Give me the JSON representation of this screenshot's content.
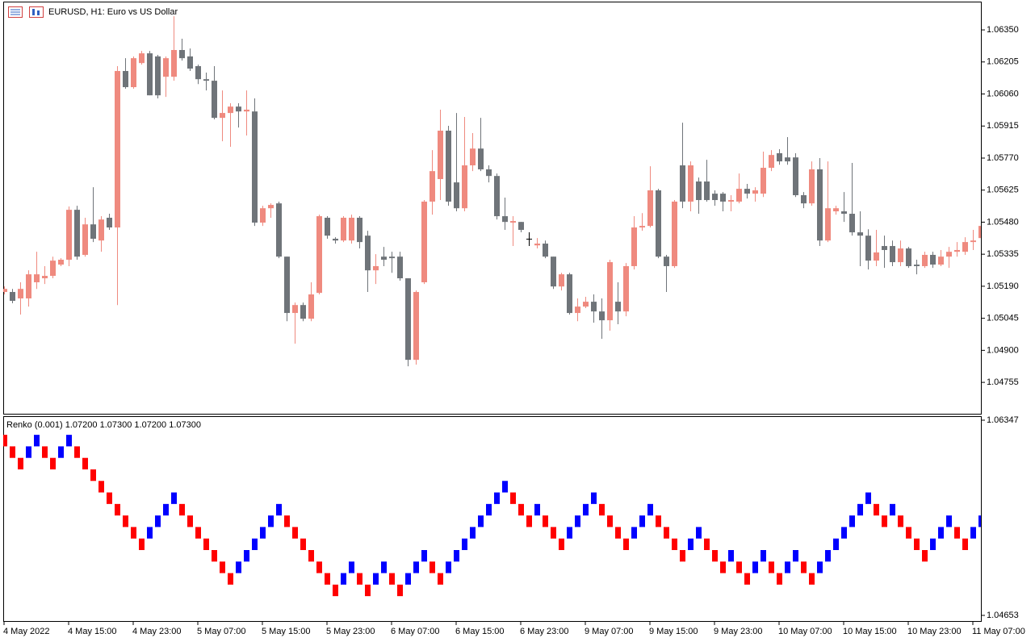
{
  "chart_data": [
    {
      "type": "candlestick",
      "title": "EURUSD, H1: Euro vs US Dollar",
      "categories": [
        "4 May 2022",
        null,
        null,
        null,
        null,
        null,
        null,
        null,
        "4 May 15:00",
        null,
        null,
        null,
        null,
        null,
        null,
        null,
        "4 May 23:00",
        null,
        null,
        null,
        null,
        null,
        null,
        null,
        "5 May 07:00",
        null,
        null,
        null,
        null,
        null,
        null,
        null,
        "5 May 15:00",
        null,
        null,
        null,
        null,
        null,
        null,
        null,
        "5 May 23:00",
        null,
        null,
        null,
        null,
        null,
        null,
        null,
        "6 May 07:00",
        null,
        null,
        null,
        null,
        null,
        null,
        null,
        "6 May 15:00",
        null,
        null,
        null,
        null,
        null,
        null,
        null,
        "6 May 23:00",
        null,
        null,
        null,
        null,
        null,
        null,
        null,
        "9 May 07:00",
        null,
        null,
        null,
        null,
        null,
        null,
        null,
        "9 May 15:00",
        null,
        null,
        null,
        null,
        null,
        null,
        null,
        "9 May 23:00",
        null,
        null,
        null,
        null,
        null,
        null,
        null,
        "10 May 07:00",
        null,
        null,
        null,
        null,
        null,
        null,
        null,
        "10 May 15:00",
        null,
        null,
        null,
        null,
        null,
        null,
        null,
        "10 May 23:00",
        null,
        null,
        null,
        null,
        null,
        null,
        null,
        "11 May 07:00",
        null
      ],
      "open": [
        1.05164,
        1.05164,
        1.05135,
        1.05135,
        1.05208,
        1.05226,
        1.05237,
        1.05288,
        1.0531,
        1.05536,
        1.05332,
        1.0547,
        1.05397,
        1.055,
        1.05456,
        1.06164,
        1.06091,
        1.062,
        1.06244,
        1.0623,
        1.06138,
        1.06138,
        1.06259,
        1.0623,
        1.06186,
        1.06127,
        1.0612,
        1.05952,
        1.05974,
        1.06003,
        1.05981,
        1.05981,
        1.05478,
        1.05543,
        1.05565,
        1.05324,
        1.05069,
        1.05105,
        1.05043,
        1.0516,
        1.055,
        1.05405,
        1.05397,
        1.05397,
        1.055,
        1.05419,
        1.05262,
        1.05324,
        1.05324,
        1.05324,
        1.05226,
        1.04857,
        1.05208,
        1.05573,
        1.05675,
        1.05894,
        1.0566,
        1.05543,
        1.05737,
        1.05813,
        1.05719,
        1.05689,
        1.05507,
        1.05478,
        1.05481,
        1.05405,
        1.05375,
        1.05383,
        1.05324,
        1.05189,
        1.05244,
        1.05069,
        1.05098,
        1.0512,
        1.05076,
        1.05036,
        1.0512,
        1.05076,
        1.05281,
        1.05456,
        1.05463,
        1.05624,
        1.05324,
        1.05281,
        1.05737,
        1.05573,
        1.05664,
        1.05664,
        1.05609,
        1.05609,
        1.05573,
        1.05573,
        1.05631,
        1.05609,
        1.05609,
        1.05726,
        1.05792,
        1.05773,
        1.05773,
        1.05602,
        1.05565,
        1.05719,
        1.05397,
        1.05529,
        1.05529,
        1.05518,
        1.05434,
        1.05419,
        1.05306,
        1.05372,
        1.05372,
        1.05299,
        1.05361,
        1.05288,
        1.05281,
        1.05332,
        1.05288,
        1.05324,
        1.05346,
        1.05346,
        1.0539,
        1.05408
      ],
      "high": [
        1.05189,
        1.05178,
        1.05208,
        1.05262,
        1.05346,
        1.05281,
        1.05324,
        1.05317,
        1.05551,
        1.05554,
        1.055,
        1.05638,
        1.05507,
        1.05518,
        1.06186,
        1.06222,
        1.0623,
        1.06255,
        1.06255,
        1.06237,
        1.0623,
        1.06412,
        1.0631,
        1.06266,
        1.06193,
        1.06157,
        1.06186,
        1.06076,
        1.06018,
        1.06018,
        1.06076,
        1.0604,
        1.05554,
        1.05565,
        1.05573,
        1.05324,
        1.05116,
        1.05116,
        1.05208,
        1.05514,
        1.05507,
        1.05412,
        1.05507,
        1.05514,
        1.05507,
        1.05441,
        1.05335,
        1.05368,
        1.05346,
        1.05346,
        1.05226,
        1.05171,
        1.0558,
        1.05806,
        1.05989,
        1.05916,
        1.05974,
        1.05956,
        1.05883,
        1.05952,
        1.05737,
        1.057,
        1.05591,
        1.05507,
        1.05481,
        1.05434,
        1.05408,
        1.05397,
        1.05324,
        1.05251,
        1.05251,
        1.05135,
        1.05142,
        1.05153,
        1.05135,
        1.0531,
        1.05208,
        1.05295,
        1.05507,
        1.05521,
        1.05733,
        1.05631,
        1.05332,
        1.0558,
        1.0593,
        1.05755,
        1.05682,
        1.05762,
        1.05624,
        1.05616,
        1.05602,
        1.057,
        1.05653,
        1.05638,
        1.05799,
        1.05806,
        1.0581,
        1.05865,
        1.05792,
        1.05616,
        1.05755,
        1.0577,
        1.05755,
        1.05554,
        1.05616,
        1.05748,
        1.05529,
        1.05448,
        1.05445,
        1.05419,
        1.05397,
        1.05397,
        1.05368,
        1.0531,
        1.05346,
        1.05346,
        1.05354,
        1.05368,
        1.0539,
        1.05412,
        1.05445,
        1.05507
      ],
      "low": [
        1.05153,
        1.05113,
        1.05062,
        1.05098,
        1.05178,
        1.052,
        1.05226,
        1.05281,
        1.05281,
        1.0531,
        1.05324,
        1.0539,
        1.05346,
        1.05445,
        1.05105,
        1.06084,
        1.06084,
        1.06193,
        1.06054,
        1.0604,
        1.06047,
        1.0612,
        1.06211,
        1.06164,
        1.06105,
        1.06076,
        1.05945,
        1.05846,
        1.05821,
        1.05908,
        1.05872,
        1.05463,
        1.05463,
        1.055,
        1.05317,
        1.05032,
        1.0493,
        1.05032,
        1.05032,
        1.05153,
        1.05405,
        1.05383,
        1.0539,
        1.05383,
        1.05361,
        1.05164,
        1.052,
        1.05281,
        1.05251,
        1.05215,
        1.04828,
        1.04835,
        1.052,
        1.05514,
        1.0558,
        1.05554,
        1.05529,
        1.05529,
        1.05711,
        1.05711,
        1.0566,
        1.05492,
        1.05445,
        1.05372,
        1.05434,
        1.05372,
        1.05361,
        1.05317,
        1.05178,
        1.05171,
        1.05062,
        1.05032,
        1.05091,
        1.05025,
        1.04952,
        1.04989,
        1.05018,
        1.05054,
        1.05266,
        1.05441,
        1.05456,
        1.05317,
        1.05164,
        1.05273,
        1.05543,
        1.05529,
        1.05518,
        1.05573,
        1.05554,
        1.05529,
        1.05529,
        1.05565,
        1.05587,
        1.05573,
        1.05594,
        1.05711,
        1.0574,
        1.0574,
        1.05594,
        1.05543,
        1.05554,
        1.05372,
        1.0539,
        1.05514,
        1.05481,
        1.05419,
        1.05281,
        1.05266,
        1.05281,
        1.05273,
        1.05281,
        1.05281,
        1.05273,
        1.05244,
        1.05273,
        1.05273,
        1.05281,
        1.05273,
        1.05324,
        1.05332,
        1.05354,
        1.0539
      ],
      "close": [
        1.05178,
        1.05124,
        1.05178,
        1.05244,
        1.05244,
        1.05237,
        1.05306,
        1.0531,
        1.05536,
        1.05324,
        1.0547,
        1.05405,
        1.05492,
        1.05456,
        1.06164,
        1.06091,
        1.06222,
        1.06244,
        1.06054,
        1.06054,
        1.06222,
        1.06259,
        1.06222,
        1.06175,
        1.06127,
        1.0612,
        1.05952,
        1.05974,
        1.06003,
        1.05981,
        1.05989,
        1.05478,
        1.05543,
        1.05558,
        1.05324,
        1.05069,
        1.05105,
        1.05043,
        1.05153,
        1.05507,
        1.05419,
        1.05397,
        1.055,
        1.055,
        1.0539,
        1.05262,
        1.05281,
        1.0531,
        1.05317,
        1.05226,
        1.04857,
        1.05164,
        1.05573,
        1.05711,
        1.05894,
        1.05573,
        1.05543,
        1.05737,
        1.05813,
        1.05719,
        1.05689,
        1.05507,
        1.05481,
        1.05485,
        1.05445,
        1.05405,
        1.05383,
        1.05324,
        1.05189,
        1.05244,
        1.05069,
        1.05098,
        1.0512,
        1.05076,
        1.05036,
        1.05299,
        1.05076,
        1.05281,
        1.05456,
        1.05463,
        1.05624,
        1.05324,
        1.05281,
        1.05573,
        1.05573,
        1.05737,
        1.0558,
        1.0558,
        1.0558,
        1.05573,
        1.0558,
        1.05631,
        1.05609,
        1.05624,
        1.05726,
        1.05784,
        1.05755,
        1.05755,
        1.05602,
        1.05565,
        1.05719,
        1.05397,
        1.05543,
        1.05543,
        1.05518,
        1.05434,
        1.05419,
        1.05306,
        1.05343,
        1.05354,
        1.05299,
        1.05361,
        1.05281,
        1.05281,
        1.05332,
        1.05288,
        1.05324,
        1.05346,
        1.05354,
        1.0539,
        1.05397,
        1.05463
      ],
      "up_color": "#ef8a7f",
      "down_color": "#6f7479",
      "ylim": [
        1.04613,
        1.06478
      ],
      "yticks": [
        {
          "value": 1.0635,
          "label": "1.06350"
        },
        1.06205,
        {
          "value": 1.0606,
          "label": "1.06060"
        },
        1.05915,
        {
          "value": 1.0577,
          "label": "1.05770"
        },
        1.05625,
        {
          "value": 1.0548,
          "label": "1.05480"
        },
        1.05335,
        {
          "value": 1.0519,
          "label": "1.05190"
        },
        1.05045,
        {
          "value": 1.049,
          "label": "1.04900"
        },
        1.04755
      ]
    },
    {
      "type": "renko",
      "title": "Renko (0.001) 1.07200 1.07300 1.07200 1.07300",
      "open": [
        1.0622,
        1.0612,
        1.0602,
        1.0602,
        1.0612,
        1.0612,
        1.0602,
        1.0602,
        1.0612,
        1.0612,
        1.0602,
        1.0592,
        1.0582,
        1.0572,
        1.0562,
        1.0552,
        1.0542,
        1.0532,
        1.0532,
        1.0542,
        1.0552,
        1.0562,
        1.0562,
        1.0552,
        1.0542,
        1.0532,
        1.0522,
        1.0512,
        1.0502,
        1.0502,
        1.0512,
        1.0522,
        1.0532,
        1.0542,
        1.0552,
        1.0552,
        1.0542,
        1.0532,
        1.0522,
        1.0512,
        1.0502,
        1.0492,
        1.0492,
        1.0502,
        1.0502,
        1.0492,
        1.0492,
        1.0502,
        1.0502,
        1.0492,
        1.0492,
        1.0502,
        1.0512,
        1.0512,
        1.0502,
        1.0502,
        1.0512,
        1.0522,
        1.0532,
        1.0542,
        1.0552,
        1.0562,
        1.0572,
        1.0572,
        1.0562,
        1.0552,
        1.0552,
        1.0552,
        1.0542,
        1.0532,
        1.0532,
        1.0542,
        1.0552,
        1.0562,
        1.0562,
        1.0552,
        1.0542,
        1.0532,
        1.0532,
        1.0542,
        1.0552,
        1.0552,
        1.0542,
        1.0532,
        1.0522,
        1.0522,
        1.0532,
        1.0532,
        1.0522,
        1.0512,
        1.0512,
        1.0512,
        1.0502,
        1.0502,
        1.0512,
        1.0512,
        1.0502,
        1.0502,
        1.0512,
        1.0512,
        1.0502,
        1.0502,
        1.0512,
        1.0522,
        1.0532,
        1.0542,
        1.0552,
        1.0562,
        1.0562,
        1.0552,
        1.0552,
        1.0552,
        1.0542,
        1.0532,
        1.0522,
        1.0522,
        1.0532,
        1.0542,
        1.0542,
        1.0532,
        1.0532,
        1.0542
      ],
      "close": [
        1.0612,
        1.0602,
        1.0592,
        1.0612,
        1.0622,
        1.0602,
        1.0592,
        1.0612,
        1.0622,
        1.0602,
        1.0592,
        1.0582,
        1.0572,
        1.0562,
        1.0552,
        1.0542,
        1.0532,
        1.0522,
        1.0542,
        1.0552,
        1.0562,
        1.0572,
        1.0552,
        1.0542,
        1.0532,
        1.0522,
        1.0512,
        1.0502,
        1.0492,
        1.0512,
        1.0522,
        1.0532,
        1.0542,
        1.0552,
        1.0562,
        1.0542,
        1.0532,
        1.0522,
        1.0512,
        1.0502,
        1.0492,
        1.0482,
        1.0502,
        1.0512,
        1.0492,
        1.0482,
        1.0502,
        1.0512,
        1.0492,
        1.0482,
        1.0502,
        1.0512,
        1.0522,
        1.0502,
        1.0492,
        1.0512,
        1.0522,
        1.0532,
        1.0542,
        1.0552,
        1.0562,
        1.0572,
        1.0582,
        1.0562,
        1.0552,
        1.0542,
        1.0562,
        1.0542,
        1.0532,
        1.0522,
        1.0542,
        1.0552,
        1.0562,
        1.0572,
        1.0552,
        1.0542,
        1.0532,
        1.0522,
        1.0542,
        1.0552,
        1.0562,
        1.0542,
        1.0532,
        1.0522,
        1.0512,
        1.0532,
        1.0542,
        1.0522,
        1.0512,
        1.0502,
        1.0522,
        1.0502,
        1.0492,
        1.0512,
        1.0522,
        1.0502,
        1.0492,
        1.0512,
        1.0522,
        1.0502,
        1.0492,
        1.0512,
        1.0522,
        1.0532,
        1.0542,
        1.0552,
        1.0562,
        1.0572,
        1.0552,
        1.0542,
        1.0562,
        1.0542,
        1.0532,
        1.0522,
        1.0512,
        1.0532,
        1.0542,
        1.0552,
        1.0532,
        1.0522,
        1.0542,
        1.0552
      ],
      "up_color": "#0000ff",
      "down_color": "#ff0000",
      "ylim": [
        1.04604,
        1.06382
      ],
      "yticks": [
        1.06347,
        1.04653
      ]
    }
  ]
}
